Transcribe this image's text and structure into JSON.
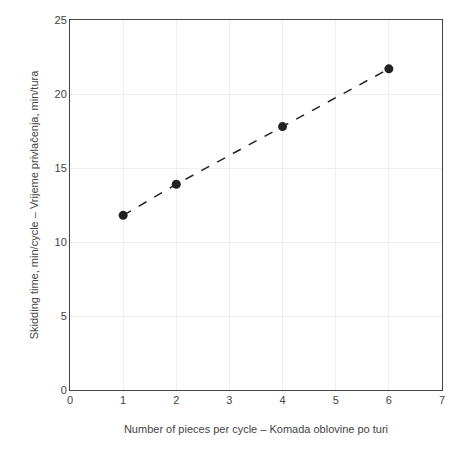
{
  "chart_data": {
    "type": "line",
    "xlabel": "Number of pieces per cycle – Komada oblovine po turi",
    "ylabel": "Skidding time, min/cycle – Vrijeme privlačenja, min/tura",
    "x": [
      1,
      2,
      4,
      6
    ],
    "values": [
      11.8,
      13.9,
      17.8,
      21.7
    ],
    "color": "#222222",
    "line_style": "dash",
    "marker": "circle",
    "xlim": [
      0,
      7
    ],
    "ylim": [
      0,
      25
    ],
    "xticks": [
      0,
      1,
      2,
      3,
      4,
      5,
      6,
      7
    ],
    "yticks": [
      0,
      5,
      10,
      15,
      20,
      25
    ],
    "grid": true
  }
}
